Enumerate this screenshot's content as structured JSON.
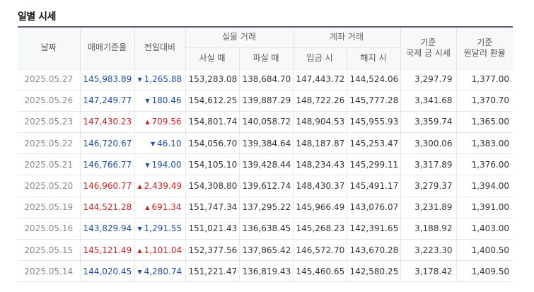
{
  "title": "일별 시세",
  "colors": {
    "up": "#cc1e1e",
    "down": "#1d4ea0",
    "header_bg": "#f7f8fa"
  },
  "headers": {
    "date": "날짜",
    "base_rate": "매매기준율",
    "change": "전일대비",
    "cash_group": "실물 거래",
    "cash_buy": "사실 때",
    "cash_sell": "파실 때",
    "transfer_group": "계좌 거래",
    "deposit": "입금 시",
    "withdraw": "해지 시",
    "intl_gold": "기준\n국제 금 시세",
    "usd_rate": "기준\n원달러 환율"
  },
  "rows": [
    {
      "date": "2025.05.27",
      "base": "145,983.89",
      "dir": "down",
      "change": "1,265.88",
      "cash_buy": "153,283.08",
      "cash_sell": "138,684.70",
      "deposit": "147,443.72",
      "withdraw": "144,524.06",
      "gold": "3,297.79",
      "usd": "1,377.00"
    },
    {
      "date": "2025.05.26",
      "base": "147,249.77",
      "dir": "down",
      "change": "180.46",
      "cash_buy": "154,612.25",
      "cash_sell": "139,887.29",
      "deposit": "148,722.26",
      "withdraw": "145,777.28",
      "gold": "3,341.68",
      "usd": "1,370.70"
    },
    {
      "date": "2025.05.23",
      "base": "147,430.23",
      "dir": "up",
      "change": "709.56",
      "cash_buy": "154,801.74",
      "cash_sell": "140,058.72",
      "deposit": "148,904.53",
      "withdraw": "145,955.93",
      "gold": "3,359.74",
      "usd": "1,365.00"
    },
    {
      "date": "2025.05.22",
      "base": "146,720.67",
      "dir": "down",
      "change": "46.10",
      "cash_buy": "154,056.70",
      "cash_sell": "139,384.64",
      "deposit": "148,187.87",
      "withdraw": "145,253.47",
      "gold": "3,300.06",
      "usd": "1,383.00"
    },
    {
      "date": "2025.05.21",
      "base": "146,766.77",
      "dir": "down",
      "change": "194.00",
      "cash_buy": "154,105.10",
      "cash_sell": "139,428.44",
      "deposit": "148,234.43",
      "withdraw": "145,299.11",
      "gold": "3,317.89",
      "usd": "1,376.00"
    },
    {
      "date": "2025.05.20",
      "base": "146,960.77",
      "dir": "up",
      "change": "2,439.49",
      "cash_buy": "154,308.80",
      "cash_sell": "139,612.74",
      "deposit": "148,430.37",
      "withdraw": "145,491.17",
      "gold": "3,279.37",
      "usd": "1,394.00"
    },
    {
      "date": "2025.05.19",
      "base": "144,521.28",
      "dir": "up",
      "change": "691.34",
      "cash_buy": "151,747.34",
      "cash_sell": "137,295.22",
      "deposit": "145,966.49",
      "withdraw": "143,076.07",
      "gold": "3,231.89",
      "usd": "1,391.00"
    },
    {
      "date": "2025.05.16",
      "base": "143,829.94",
      "dir": "down",
      "change": "1,291.55",
      "cash_buy": "151,021.43",
      "cash_sell": "136,638.45",
      "deposit": "145,268.23",
      "withdraw": "142,391.65",
      "gold": "3,188.92",
      "usd": "1,403.00"
    },
    {
      "date": "2025.05.15",
      "base": "145,121.49",
      "dir": "up",
      "change": "1,101.04",
      "cash_buy": "152,377.56",
      "cash_sell": "137,865.42",
      "deposit": "146,572.70",
      "withdraw": "143,670.28",
      "gold": "3,223.30",
      "usd": "1,400.50"
    },
    {
      "date": "2025.05.14",
      "base": "144,020.45",
      "dir": "down",
      "change": "4,280.74",
      "cash_buy": "151,221.47",
      "cash_sell": "136,819.43",
      "deposit": "145,460.65",
      "withdraw": "142,580.25",
      "gold": "3,178.42",
      "usd": "1,409.50"
    }
  ]
}
